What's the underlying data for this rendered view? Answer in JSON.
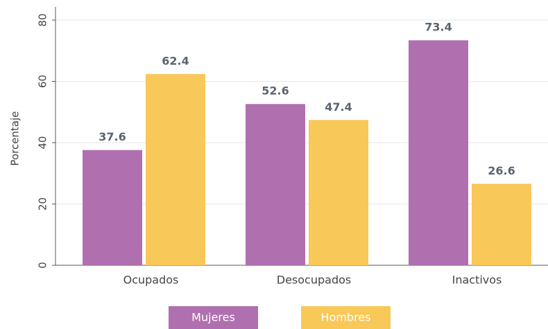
{
  "chart_data": {
    "type": "bar",
    "categories": [
      "Ocupados",
      "Desocupados",
      "Inactivos"
    ],
    "series": [
      {
        "name": "Mujeres",
        "color": "#b070b0",
        "values": [
          37.6,
          52.6,
          73.4
        ]
      },
      {
        "name": "Hombres",
        "color": "#f8c858",
        "values": [
          62.4,
          47.4,
          26.6
        ]
      }
    ],
    "y_label": "Porcentaje",
    "ylim": [
      0,
      80
    ],
    "yticks": [
      0,
      20,
      40,
      60,
      80
    ],
    "grid": true,
    "legend": "bottom"
  }
}
